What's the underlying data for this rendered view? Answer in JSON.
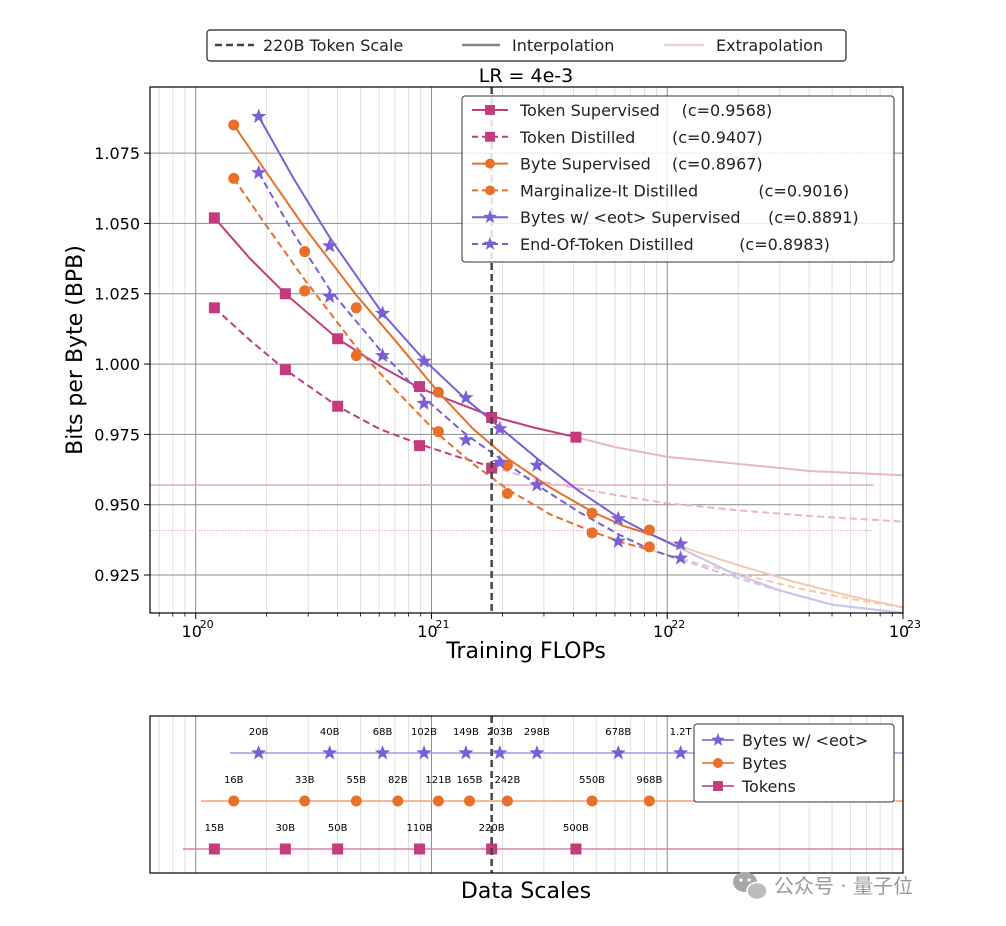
{
  "colors": {
    "token": "#c43c7e",
    "byte": "#e8702a",
    "eot": "#7a5fd6",
    "scale_line": "#444444",
    "interp_legend": "#888888",
    "extrap_legend": "#e8d2db",
    "grid_major": "#8c8c8c",
    "grid_minor": "#d9d9d9"
  },
  "top_legend": {
    "items": [
      {
        "label": "220B Token Scale",
        "style": "dashed"
      },
      {
        "label": "Interpolation",
        "style": "solid"
      },
      {
        "label": "Extrapolation",
        "style": "light"
      }
    ]
  },
  "watermark": {
    "text": "公众号 · 量子位",
    "icon": "wechat-icon"
  },
  "chart_data": [
    {
      "type": "line",
      "title": "LR = 4e-3",
      "xlabel": "Training FLOPs",
      "ylabel": "Bits per Byte (BPB)",
      "x_scale": "log",
      "xlim": [
        6.4e+19,
        1e+23
      ],
      "ylim": [
        0.9115,
        1.0985
      ],
      "x_ticks": [
        1e+20,
        1e+21,
        1e+22,
        1e+23
      ],
      "x_tick_labels": [
        {
          "base": "10",
          "exp": "20"
        },
        {
          "base": "10",
          "exp": "21"
        },
        {
          "base": "10",
          "exp": "22"
        },
        {
          "base": "10",
          "exp": "23"
        }
      ],
      "y_ticks": [
        0.925,
        0.95,
        0.975,
        1.0,
        1.025,
        1.05,
        1.075
      ],
      "y_tick_labels": [
        "0.925",
        "0.950",
        "0.975",
        "1.000",
        "1.025",
        "1.050",
        "1.075"
      ],
      "grid": true,
      "vline_x": 1.8e+21,
      "hlines": [
        {
          "y": 0.957,
          "color": "token",
          "style": "solid-light",
          "x_end": 7.5e+22
        },
        {
          "y": 0.9408,
          "color": "token",
          "style": "dotted-light",
          "x_end": 7.5e+22
        }
      ],
      "legend_position": "top-right",
      "series": [
        {
          "name": "Token Supervised",
          "coef": "(c=0.9568)",
          "color": "token",
          "dash": false,
          "marker": "square",
          "x": [
            1.2e+20,
            2.4e+20,
            4e+20,
            8.9e+20,
            1.8e+21,
            4.1e+21
          ],
          "y": [
            1.052,
            1.025,
            1.009,
            0.992,
            0.981,
            0.974
          ],
          "fit_x": [
            1.2e+20,
            1.7e+20,
            2.4e+20,
            4e+20,
            6e+20,
            8.9e+20,
            1.3e+21,
            1.8e+21,
            2.7e+21,
            4.1e+21
          ],
          "fit_y": [
            1.052,
            1.0375,
            1.025,
            1.009,
            0.9995,
            0.9915,
            0.986,
            0.9815,
            0.9775,
            0.974
          ],
          "extrap_x": [
            4.1e+21,
            6e+21,
            1e+22,
            2e+22,
            4e+22,
            1e+23
          ],
          "extrap_y": [
            0.974,
            0.9705,
            0.967,
            0.9645,
            0.962,
            0.9605
          ]
        },
        {
          "name": "Token Distilled",
          "coef": "(c=0.9407)",
          "color": "token",
          "dash": true,
          "marker": "square",
          "x": [
            1.2e+20,
            2.4e+20,
            4e+20,
            8.9e+20,
            1.8e+21
          ],
          "y": [
            1.02,
            0.998,
            0.985,
            0.971,
            0.963
          ],
          "fit_x": [
            1.2e+20,
            1.7e+20,
            2.4e+20,
            4e+20,
            6e+20,
            8.9e+20,
            1.3e+21,
            1.8e+21
          ],
          "fit_y": [
            1.02,
            1.0085,
            0.998,
            0.985,
            0.977,
            0.9715,
            0.967,
            0.9635
          ],
          "extrap_x": [
            1.8e+21,
            3e+21,
            6e+21,
            1e+22,
            2e+22,
            4e+22,
            1e+23
          ],
          "extrap_y": [
            0.9635,
            0.958,
            0.9535,
            0.9505,
            0.948,
            0.946,
            0.944
          ]
        },
        {
          "name": "Byte Supervised",
          "coef": "(c=0.8967)",
          "color": "byte",
          "dash": false,
          "marker": "circle",
          "x": [
            1.45e+20,
            2.9e+20,
            4.8e+20,
            1.07e+21,
            2.1e+21,
            4.8e+21,
            8.4e+21
          ],
          "y": [
            1.085,
            1.04,
            1.02,
            0.99,
            0.964,
            0.947,
            0.941
          ],
          "fit_x": [
            1.45e+20,
            2e+20,
            2.9e+20,
            4.8e+20,
            7e+20,
            1.07e+21,
            1.5e+21,
            2.1e+21,
            3.2e+21,
            4.8e+21,
            6.5e+21,
            8.4e+21
          ],
          "fit_y": [
            1.085,
            1.068,
            1.0485,
            1.0245,
            1.0085,
            0.99,
            0.977,
            0.9665,
            0.956,
            0.9475,
            0.9425,
            0.9395
          ],
          "extrap_x": [
            8.4e+21,
            1.3e+22,
            2e+22,
            3.5e+22,
            6e+22,
            1e+23
          ],
          "extrap_y": [
            0.9395,
            0.9335,
            0.9285,
            0.9225,
            0.9175,
            0.9135
          ]
        },
        {
          "name": "Marginalize-It Distilled",
          "coef": "(c=0.9016)",
          "color": "byte",
          "dash": true,
          "marker": "circle",
          "x": [
            1.45e+20,
            2.9e+20,
            4.8e+20,
            1.07e+21,
            2.1e+21,
            4.8e+21,
            8.4e+21
          ],
          "y": [
            1.066,
            1.026,
            1.003,
            0.976,
            0.954,
            0.94,
            0.935
          ],
          "fit_x": [
            1.45e+20,
            2e+20,
            2.9e+20,
            4.8e+20,
            7e+20,
            1.07e+21,
            1.5e+21,
            2.1e+21,
            3.2e+21,
            4.8e+21,
            6.5e+21,
            8.4e+21
          ],
          "fit_y": [
            1.066,
            1.049,
            1.03,
            1.006,
            0.991,
            0.975,
            0.9645,
            0.9555,
            0.9465,
            0.9405,
            0.9365,
            0.934
          ],
          "extrap_x": [
            8.4e+21,
            1.3e+22,
            2e+22,
            3.5e+22,
            6e+22,
            1e+23
          ],
          "extrap_y": [
            0.934,
            0.9295,
            0.9255,
            0.9205,
            0.9165,
            0.9135
          ]
        },
        {
          "name": "Bytes w/ <eot> Supervised",
          "coef": "(c=0.8891)",
          "color": "eot",
          "dash": false,
          "marker": "star",
          "x": [
            1.85e+20,
            3.7e+20,
            6.2e+20,
            9.3e+20,
            1.4e+21,
            1.95e+21,
            2.8e+21,
            6.2e+21,
            1.14e+22
          ],
          "y": [
            1.088,
            1.042,
            1.018,
            1.001,
            0.988,
            0.977,
            0.964,
            0.945,
            0.936
          ],
          "fit_x": [
            1.85e+20,
            2.6e+20,
            3.7e+20,
            6.2e+20,
            9.3e+20,
            1.4e+21,
            1.95e+21,
            2.8e+21,
            4.2e+21,
            6.2e+21,
            8.5e+21,
            1.14e+22
          ],
          "fit_y": [
            1.088,
            1.066,
            1.045,
            1.018,
            1.0015,
            0.9875,
            0.9775,
            0.9665,
            0.955,
            0.9455,
            0.9395,
            0.9345
          ],
          "extrap_x": [
            1.14e+22,
            1.8e+22,
            3e+22,
            5e+22,
            1e+23
          ],
          "extrap_y": [
            0.9345,
            0.9265,
            0.9195,
            0.9145,
            0.9115
          ]
        },
        {
          "name": "End-Of-Token Distilled",
          "coef": "(c=0.8983)",
          "color": "eot",
          "dash": true,
          "marker": "star",
          "x": [
            1.85e+20,
            3.7e+20,
            6.2e+20,
            9.3e+20,
            1.4e+21,
            1.95e+21,
            2.8e+21,
            6.2e+21,
            1.14e+22
          ],
          "y": [
            1.068,
            1.024,
            1.003,
            0.986,
            0.973,
            0.965,
            0.957,
            0.937,
            0.931
          ],
          "fit_x": [
            1.85e+20,
            2.6e+20,
            3.7e+20,
            6.2e+20,
            9.3e+20,
            1.4e+21,
            1.95e+21,
            2.8e+21,
            4.2e+21,
            6.2e+21,
            8.5e+21,
            1.14e+22
          ],
          "fit_y": [
            1.068,
            1.0465,
            1.0265,
            1.004,
            0.988,
            0.975,
            0.9665,
            0.957,
            0.9475,
            0.9395,
            0.934,
            0.9305
          ],
          "extrap_x": [
            1.14e+22,
            1.8e+22,
            3e+22,
            5e+22,
            1e+23
          ],
          "extrap_y": [
            0.9305,
            0.925,
            0.9195,
            0.9145,
            0.9115
          ]
        }
      ]
    },
    {
      "type": "scatter",
      "xlabel": "Data Scales",
      "x_scale": "log",
      "xlim": [
        6.4e+19,
        1e+23
      ],
      "vline_x": 1.8e+21,
      "legend_position": "top-right",
      "series": [
        {
          "name": "Bytes w/ <eot>",
          "color": "eot",
          "marker": "star",
          "row": 1,
          "x": [
            1.85e+20,
            3.7e+20,
            6.2e+20,
            9.3e+20,
            1.4e+21,
            1.95e+21,
            2.8e+21,
            6.2e+21,
            1.14e+22
          ],
          "labels": [
            "20B",
            "40B",
            "68B",
            "102B",
            "149B",
            "203B",
            "298B",
            "678B",
            "1.2T"
          ]
        },
        {
          "name": "Bytes",
          "color": "byte",
          "marker": "circle",
          "row": 2,
          "x": [
            1.45e+20,
            2.9e+20,
            4.8e+20,
            7.2e+20,
            1.07e+21,
            1.45e+21,
            2.1e+21,
            4.8e+21,
            8.4e+21
          ],
          "labels": [
            "16B",
            "33B",
            "55B",
            "82B",
            "121B",
            "165B",
            "242B",
            "550B",
            "968B"
          ]
        },
        {
          "name": "Tokens",
          "color": "token",
          "marker": "square",
          "row": 3,
          "x": [
            1.2e+20,
            2.4e+20,
            4e+20,
            8.9e+20,
            1.8e+21,
            4.1e+21
          ],
          "labels": [
            "15B",
            "30B",
            "50B",
            "110B",
            "220B",
            "500B"
          ]
        }
      ]
    }
  ]
}
